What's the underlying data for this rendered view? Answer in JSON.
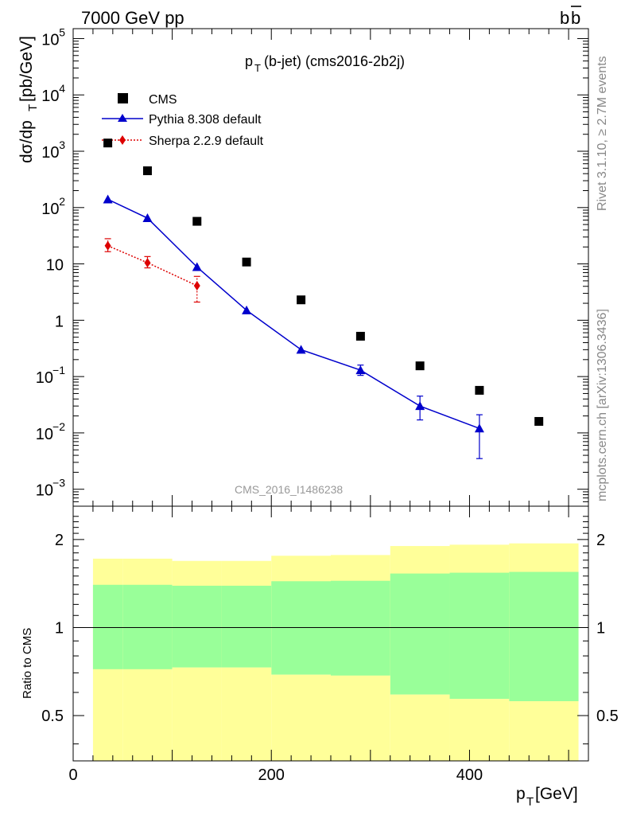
{
  "header": {
    "left": "7000 GeV pp",
    "right_main": "b",
    "right_bar": "b"
  },
  "side_labels": {
    "rivet": "Rivet 3.1.10, ≥ 2.7M events",
    "mcplots": "mcplots.cern.ch [arXiv:1306.3436]"
  },
  "chart_data": [
    {
      "type": "scatter",
      "panel": "main",
      "title_main": "p",
      "title_sub": "T",
      "title_rest": "(b-jet) (cms2016-2b2j)",
      "ylabel_main": "dσ/dp",
      "ylabel_sub": "T",
      "ylabel_rest": " [pb/GeV]",
      "watermark": "CMS_2016_I1486238",
      "yscale": "log",
      "xlim": [
        0,
        520
      ],
      "ylim": [
        0.0005,
        150000
      ],
      "y_tick_labels": [
        {
          "value": 0.001,
          "base": "10",
          "exp": "−3"
        },
        {
          "value": 0.01,
          "base": "10",
          "exp": "−2"
        },
        {
          "value": 0.1,
          "base": "10",
          "exp": "−1"
        },
        {
          "value": 1,
          "base": "1",
          "exp": ""
        },
        {
          "value": 10,
          "base": "10",
          "exp": ""
        },
        {
          "value": 100,
          "base": "10",
          "exp": "2"
        },
        {
          "value": 1000,
          "base": "10",
          "exp": "3"
        },
        {
          "value": 10000,
          "base": "10",
          "exp": "4"
        },
        {
          "value": 100000,
          "base": "10",
          "exp": "5"
        }
      ],
      "legend_position": "top-left",
      "series": [
        {
          "name": "CMS",
          "marker": "square",
          "color": "#000000",
          "line": "none",
          "points": [
            {
              "x": 35,
              "y": 1400
            },
            {
              "x": 75,
              "y": 450
            },
            {
              "x": 125,
              "y": 57
            },
            {
              "x": 175,
              "y": 10.8
            },
            {
              "x": 230,
              "y": 2.3
            },
            {
              "x": 290,
              "y": 0.52
            },
            {
              "x": 350,
              "y": 0.155
            },
            {
              "x": 410,
              "y": 0.057
            },
            {
              "x": 470,
              "y": 0.016
            }
          ]
        },
        {
          "name": "Pythia 8.308 default",
          "marker": "triangle",
          "color": "#0000cc",
          "line": "solid",
          "points": [
            {
              "x": 35,
              "y": 140
            },
            {
              "x": 75,
              "y": 65
            },
            {
              "x": 125,
              "y": 8.8
            },
            {
              "x": 175,
              "y": 1.5
            },
            {
              "x": 230,
              "y": 0.3
            },
            {
              "x": 290,
              "y": 0.13,
              "ylow": 0.105,
              "yhigh": 0.16
            },
            {
              "x": 350,
              "y": 0.03,
              "ylow": 0.017,
              "yhigh": 0.045
            },
            {
              "x": 410,
              "y": 0.012,
              "ylow": 0.0035,
              "yhigh": 0.021
            }
          ]
        },
        {
          "name": "Sherpa 2.2.9 default",
          "marker": "diamond",
          "color": "#dd0000",
          "line": "dotted",
          "points": [
            {
              "x": 35,
              "y": 21,
              "ylow": 16.5,
              "yhigh": 28
            },
            {
              "x": 75,
              "y": 10.5,
              "ylow": 8.5,
              "yhigh": 13.5
            },
            {
              "x": 125,
              "y": 4.1,
              "ylow": 2.1,
              "yhigh": 6
            }
          ]
        }
      ]
    },
    {
      "type": "area",
      "panel": "ratio",
      "ylabel": "Ratio to CMS",
      "yscale": "log",
      "ylim": [
        0.35,
        2.6
      ],
      "y_ticks": [
        0.5,
        1,
        2
      ],
      "y_tick_labels": [
        "0.5",
        "1",
        "2"
      ],
      "xlim": [
        0,
        520
      ],
      "x_ticks": [
        0,
        200,
        400
      ],
      "x_tick_labels": [
        "0",
        "200",
        "400"
      ],
      "xlabel_main": "p",
      "xlabel_sub": "T",
      "xlabel_rest": " [GeV]",
      "reference_line": 1,
      "bands": [
        {
          "x0": 20,
          "x1": 50,
          "yellow_lo": 0.72,
          "yellow_hi": 1.72,
          "green_lo": 0.72,
          "green_hi": 1.4
        },
        {
          "x0": 50,
          "x1": 100,
          "yellow_lo": 0.72,
          "yellow_hi": 1.72,
          "green_lo": 0.72,
          "green_hi": 1.4
        },
        {
          "x0": 100,
          "x1": 150,
          "yellow_lo": 0.73,
          "yellow_hi": 1.69,
          "green_lo": 0.73,
          "green_hi": 1.39
        },
        {
          "x0": 150,
          "x1": 200,
          "yellow_lo": 0.73,
          "yellow_hi": 1.69,
          "green_lo": 0.73,
          "green_hi": 1.39
        },
        {
          "x0": 200,
          "x1": 260,
          "yellow_lo": 0.69,
          "yellow_hi": 1.76,
          "green_lo": 0.69,
          "green_hi": 1.44
        },
        {
          "x0": 260,
          "x1": 320,
          "yellow_lo": 0.685,
          "yellow_hi": 1.77,
          "green_lo": 0.685,
          "green_hi": 1.445
        },
        {
          "x0": 320,
          "x1": 380,
          "yellow_lo": 0.59,
          "yellow_hi": 1.9,
          "green_lo": 0.59,
          "green_hi": 1.53
        },
        {
          "x0": 380,
          "x1": 440,
          "yellow_lo": 0.57,
          "yellow_hi": 1.92,
          "green_lo": 0.57,
          "green_hi": 1.54
        },
        {
          "x0": 440,
          "x1": 510,
          "yellow_lo": 0.56,
          "yellow_hi": 1.94,
          "green_lo": 0.56,
          "green_hi": 1.55
        }
      ],
      "colors": {
        "yellow": "#ffff99",
        "green": "#99ff99"
      }
    }
  ]
}
